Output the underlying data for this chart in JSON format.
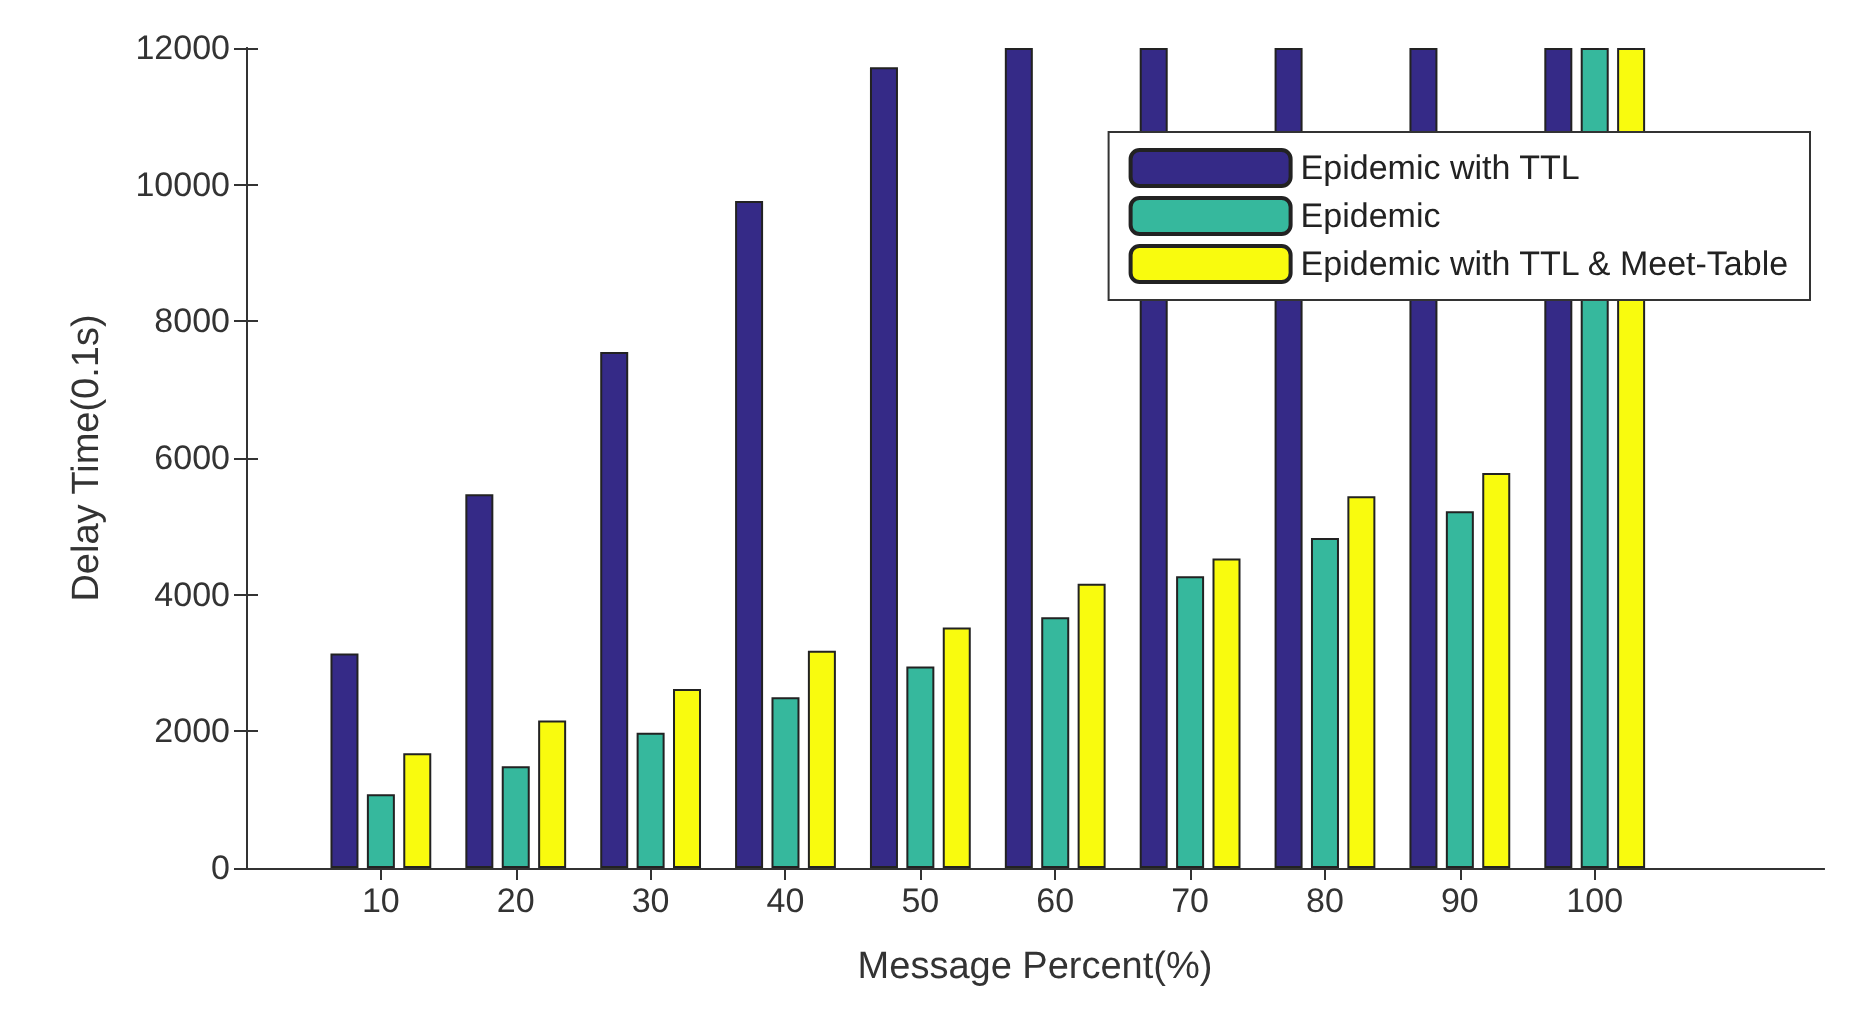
{
  "chart_data": {
    "type": "bar",
    "xlabel": "Message Percent(%)",
    "ylabel": "Delay Time(0.1s)",
    "x": [
      10,
      20,
      30,
      40,
      50,
      60,
      70,
      80,
      90,
      100
    ],
    "series": [
      {
        "name": "Epidemic with TTL",
        "color": "#352a87",
        "values": [
          3140,
          5470,
          7550,
          9760,
          11720,
          12000,
          12000,
          12000,
          12000,
          12000
        ]
      },
      {
        "name": "Epidemic",
        "color": "#36b89d",
        "values": [
          1080,
          1490,
          1980,
          2500,
          2950,
          3670,
          4270,
          4830,
          5220,
          12000
        ]
      },
      {
        "name": "Epidemic with TTL & Meet-Table",
        "color": "#f9fb0e",
        "values": [
          1680,
          2160,
          2620,
          3180,
          3520,
          4160,
          4530,
          5440,
          5780,
          12000
        ]
      }
    ],
    "xlim": [
      0,
      117
    ],
    "xticks": [
      10,
      20,
      30,
      40,
      50,
      60,
      70,
      80,
      90,
      100
    ],
    "ylim": [
      0,
      12000
    ],
    "yticks": [
      0,
      2000,
      4000,
      6000,
      8000,
      10000,
      12000
    ],
    "grid": false,
    "legend": "top right"
  }
}
